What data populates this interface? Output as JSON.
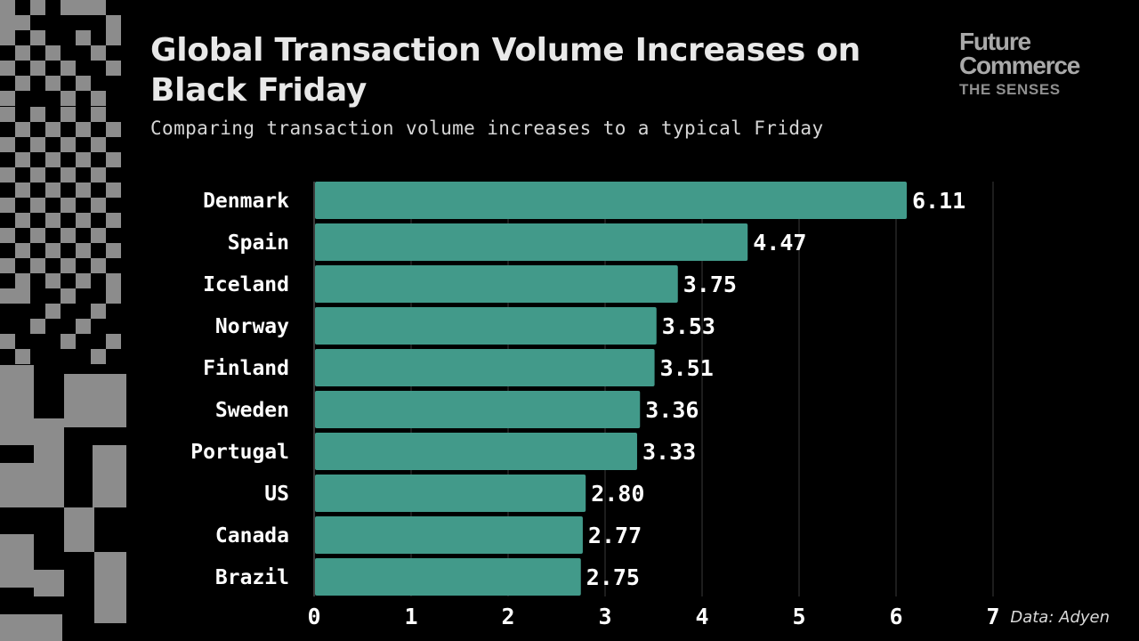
{
  "header": {
    "title": "Global Transaction Volume Increases on Black Friday",
    "subtitle": "Comparing transaction volume increases to a typical Friday"
  },
  "logo": {
    "line1": "Future",
    "line2": "Commerce",
    "line3": "THE SENSES"
  },
  "source": "Data: Adyen",
  "colors": {
    "background": "#000000",
    "bar": "#429a8a",
    "text": "#ffffff",
    "grid": "#3a3a3a",
    "pattern": "#8c8c8c"
  },
  "chart_data": {
    "type": "bar",
    "orientation": "horizontal",
    "title": "Global Transaction Volume Increases on Black Friday",
    "subtitle": "Comparing transaction volume increases to a typical Friday",
    "categories": [
      "Denmark",
      "Spain",
      "Iceland",
      "Norway",
      "Finland",
      "Sweden",
      "Portugal",
      "US",
      "Canada",
      "Brazil"
    ],
    "values": [
      6.11,
      4.47,
      3.75,
      3.53,
      3.51,
      3.36,
      3.33,
      2.8,
      2.77,
      2.75
    ],
    "value_labels": [
      "6.11",
      "4.47",
      "3.75",
      "3.53",
      "3.51",
      "3.36",
      "3.33",
      "2.80",
      "2.77",
      "2.75"
    ],
    "xlim": [
      0,
      7
    ],
    "xticks": [
      0,
      1,
      2,
      3,
      4,
      5,
      6,
      7
    ],
    "xlabel": "",
    "ylabel": "",
    "grid": "vertical"
  }
}
